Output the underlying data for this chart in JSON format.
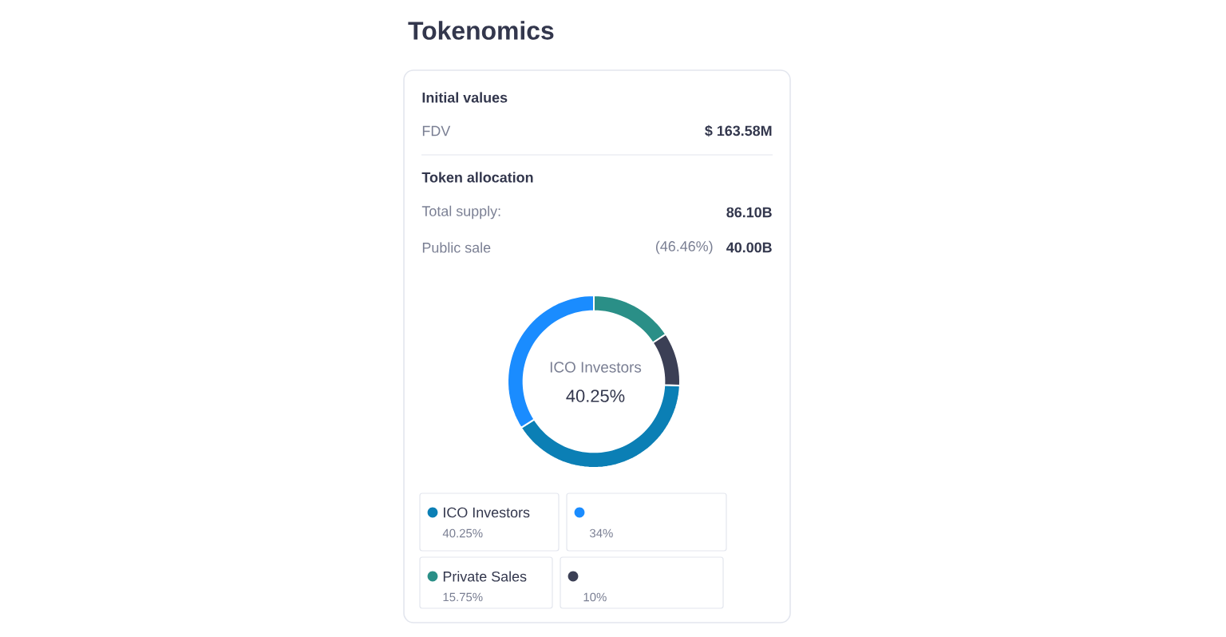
{
  "chart_data": {
    "type": "donut",
    "title": "Tokenomics",
    "categories": [
      "ICO Investors",
      null,
      "Private Sales",
      null
    ],
    "values": [
      40.25,
      34,
      15.75,
      10
    ],
    "colors": [
      "#0b7fb5",
      "#1a8cff",
      "#2a8f87",
      "#3b3f55"
    ],
    "value_labels": [
      "40.25%",
      null,
      "15.75%",
      null
    ],
    "legend": "bottom",
    "annotations": [
      "Initial values",
      "FDV",
      "$ 163.58M",
      "Token allocation",
      "Total supply:",
      "86.10B",
      "Public sale",
      "(46.46%)",
      "40.00B",
      "ICO Investors",
      "40.25%",
      "34%",
      "10%"
    ]
  }
}
